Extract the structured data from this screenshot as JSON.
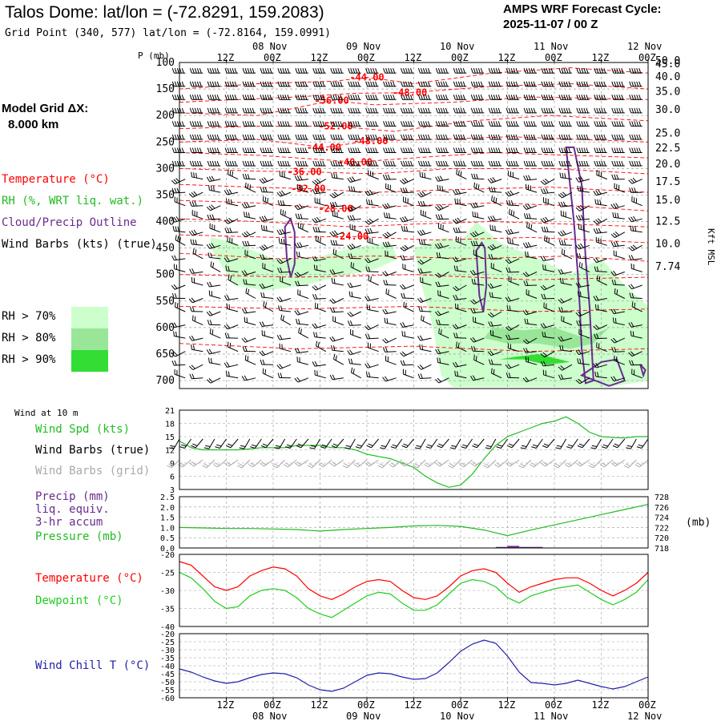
{
  "header": {
    "title": "Talos Dome:  lat/lon = (-72.8291, 159.2083)",
    "subtitle": "Grid Point (340, 577) lat/lon = (-72.8164, 159.0991)",
    "cycle_line1": "AMPS WRF Forecast Cycle:",
    "cycle_line2": "2025-11-07 / 00  Z"
  },
  "left_panel": {
    "grid_label": "Model Grid ΔX:",
    "grid_value": "8.000 km",
    "legend_temperature": "Temperature (°C)",
    "legend_rh": "RH (%, WRT liq. wat.)",
    "legend_cloud": "Cloud/Precip Outline",
    "legend_wind": "Wind Barbs (kts) (true)",
    "rh_levels": [
      "RH > 70%",
      "RH > 80%",
      "RH > 90%"
    ]
  },
  "colors": {
    "temperature": "#ff0000",
    "rh70": "#ccffcc",
    "rh80": "#99e699",
    "rh90": "#33dd33",
    "cloud": "#6a2b8f",
    "wind_true": "#000000",
    "wind_grid": "#aaaaaa",
    "wind_speed": "#22bb22",
    "precip": "#6a2b8f",
    "pressure": "#22bb22",
    "dewpoint": "#22cc22",
    "windchill": "#2222aa",
    "grid": "#9a9a9a"
  },
  "chart_data": [
    {
      "type": "contour",
      "ylabel": "P (mb)",
      "y2label": "Kft MSL",
      "p_ticks": [
        100,
        150,
        200,
        250,
        300,
        350,
        400,
        450,
        500,
        550,
        600,
        650,
        700
      ],
      "kft_ticks": [
        "50.0",
        "45.0",
        "40.0",
        "35.0",
        "30.0",
        "25.0",
        "22.5",
        "20.0",
        "17.5",
        "15.0",
        "12.5",
        "10.0",
        "7.74"
      ],
      "kft_pressure": [
        97,
        103,
        127,
        155,
        189,
        234,
        262,
        292,
        325,
        360,
        400,
        442,
        485
      ],
      "time_top_labels": [
        "12Z",
        "00Z",
        "12Z",
        "00Z",
        "12Z",
        "00Z",
        "12Z",
        "00Z",
        "12Z",
        "00Z"
      ],
      "date_top_labels": [
        "08 Nov",
        "09 Nov",
        "10 Nov",
        "11 Nov",
        "12 Nov"
      ],
      "temperature_contour_labels": [
        {
          "label": "-44.00",
          "t": 48,
          "p": 128
        },
        {
          "label": "-48.00",
          "t": 59,
          "p": 157
        },
        {
          "label": "-56.00",
          "t": 39,
          "p": 172
        },
        {
          "label": "-52.00",
          "t": 40,
          "p": 220
        },
        {
          "label": "-48.00",
          "t": 49,
          "p": 248
        },
        {
          "label": "-44.00",
          "t": 37,
          "p": 260
        },
        {
          "label": "-40.00",
          "t": 45,
          "p": 288
        },
        {
          "label": "-36.00",
          "t": 32,
          "p": 306
        },
        {
          "label": "-32.00",
          "t": 33,
          "p": 338
        },
        {
          "label": "-28.00",
          "t": 40,
          "p": 376
        },
        {
          "label": "-24.00",
          "t": 44,
          "p": 428
        }
      ]
    },
    {
      "type": "line",
      "label_top": "Wind at 10 m",
      "legend": [
        "Wind Spd (kts)",
        "Wind Barbs (true)",
        "Wind Barbs (grid)"
      ],
      "y_ticks": [
        3,
        6,
        9,
        12,
        15,
        18,
        21
      ],
      "ylim": [
        3,
        21
      ],
      "x": [
        0,
        3,
        6,
        9,
        12,
        15,
        18,
        21,
        24,
        27,
        30,
        33,
        36,
        39,
        42,
        45,
        48,
        51,
        54,
        57,
        60,
        63,
        66,
        69,
        72,
        75,
        78,
        81,
        84,
        87,
        90,
        93,
        96,
        99,
        102,
        105,
        108,
        111,
        114,
        117,
        120
      ],
      "values": [
        14,
        12.5,
        12,
        12,
        12,
        12,
        12.2,
        12.5,
        12.5,
        12.5,
        13,
        13,
        13,
        12.5,
        12.5,
        12,
        11,
        10.5,
        10,
        9,
        8,
        6,
        4.5,
        3.5,
        4,
        6.5,
        10,
        13,
        15,
        16,
        17,
        18,
        18.5,
        19.5,
        18,
        16,
        15,
        14.8,
        14.7,
        15,
        15
      ]
    },
    {
      "type": "line",
      "legend": [
        "Precip (mm)",
        "liq. equiv.",
        "3-hr accum",
        "Pressure (mb)"
      ],
      "y_ticks": [
        "0.0",
        "0.5",
        "1.0",
        "1.5",
        "2.0",
        "2.5"
      ],
      "y2_ticks": [
        718,
        720,
        722,
        724,
        726,
        728
      ],
      "y2_unit": "(mb)",
      "ylim": [
        0,
        2.5
      ],
      "y2lim": [
        718,
        728
      ],
      "x": [
        0,
        6,
        12,
        18,
        24,
        30,
        36,
        42,
        48,
        54,
        60,
        66,
        72,
        78,
        84,
        90,
        96,
        102,
        108,
        114,
        120
      ],
      "pressure": [
        722,
        721.9,
        721.8,
        721.8,
        721.7,
        721.6,
        721.3,
        721.6,
        721.8,
        722,
        722.3,
        722.4,
        722.2,
        721.5,
        720.4,
        721.5,
        722.5,
        723.5,
        724.5,
        725.5,
        726.5
      ],
      "precip_x": [
        72,
        75,
        78,
        81,
        84,
        87,
        90,
        93,
        96
      ],
      "precip": [
        0,
        0,
        0,
        0.05,
        0.1,
        0.05,
        0.05,
        0,
        0
      ]
    },
    {
      "type": "line",
      "legend": [
        "Temperature (°C)",
        "Dewpoint (°C)"
      ],
      "y_ticks": [
        -40,
        -35,
        -30,
        -25,
        -20
      ],
      "ylim": [
        -40,
        -20
      ],
      "x": [
        0,
        3,
        6,
        9,
        12,
        15,
        18,
        21,
        24,
        27,
        30,
        33,
        36,
        39,
        42,
        45,
        48,
        51,
        54,
        57,
        60,
        63,
        66,
        69,
        72,
        75,
        78,
        81,
        84,
        87,
        90,
        93,
        96,
        99,
        102,
        105,
        108,
        111,
        114,
        117,
        120
      ],
      "temperature": [
        -22,
        -23,
        -26,
        -29,
        -30,
        -29,
        -26,
        -24.5,
        -23.5,
        -24,
        -26,
        -29.5,
        -31.5,
        -32.5,
        -31,
        -29,
        -27.5,
        -27,
        -27.5,
        -30,
        -32,
        -32.5,
        -31.5,
        -29,
        -26,
        -24.5,
        -24,
        -25,
        -28,
        -30.5,
        -29,
        -28,
        -27,
        -26.5,
        -26.5,
        -28,
        -30,
        -31.5,
        -30,
        -28,
        -25
      ],
      "dewpoint": [
        -25,
        -26.5,
        -29.5,
        -33,
        -35,
        -34.5,
        -31.5,
        -30,
        -29.5,
        -30,
        -32,
        -35,
        -36.5,
        -37.5,
        -35.5,
        -33.5,
        -31.5,
        -30.5,
        -31,
        -33.5,
        -35.5,
        -35.5,
        -34,
        -31,
        -28,
        -27,
        -27.5,
        -29,
        -32,
        -33.5,
        -31.5,
        -30.5,
        -29.5,
        -29,
        -28.5,
        -30.5,
        -32.5,
        -34,
        -32.5,
        -30.5,
        -27
      ]
    },
    {
      "type": "line",
      "legend": [
        "Wind Chill T (°C)"
      ],
      "y_ticks": [
        -60,
        -55,
        -50,
        -45,
        -40,
        -35,
        -30,
        -25,
        -20
      ],
      "ylim": [
        -60,
        -20
      ],
      "x": [
        0,
        3,
        6,
        9,
        12,
        15,
        18,
        21,
        24,
        27,
        30,
        33,
        36,
        39,
        42,
        45,
        48,
        51,
        54,
        57,
        60,
        63,
        66,
        69,
        72,
        75,
        78,
        81,
        84,
        87,
        90,
        93,
        96,
        99,
        102,
        105,
        108,
        111,
        114,
        117,
        120
      ],
      "wind_chill": [
        -42,
        -44,
        -47,
        -49.5,
        -51,
        -50,
        -47.5,
        -45.5,
        -44.5,
        -45,
        -47.5,
        -52,
        -55,
        -56,
        -54,
        -50,
        -46,
        -44.5,
        -45,
        -47,
        -48.5,
        -48,
        -44.5,
        -38,
        -31,
        -26.5,
        -24,
        -26,
        -34,
        -44,
        -50.5,
        -51,
        -52,
        -51,
        -49,
        -51,
        -53,
        -54.5,
        -53,
        -50,
        -47
      ],
      "time_bottom_labels": [
        "12Z",
        "00Z",
        "12Z",
        "00Z",
        "12Z",
        "00Z",
        "12Z",
        "00Z",
        "12Z",
        "00Z"
      ],
      "date_bottom_labels": [
        "08 Nov",
        "09 Nov",
        "10 Nov",
        "11 Nov",
        "12 Nov"
      ]
    }
  ]
}
